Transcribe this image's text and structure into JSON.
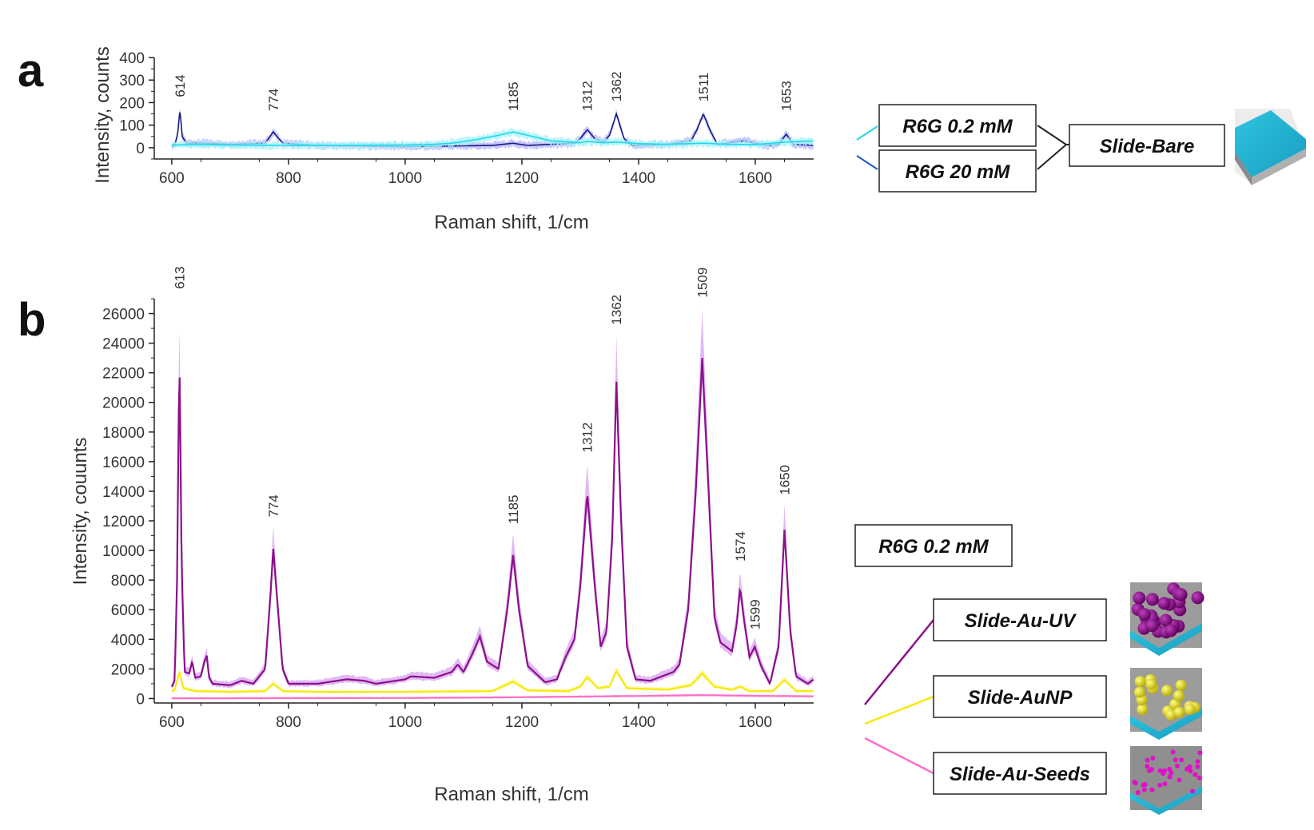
{
  "colors": {
    "dark_blue": "#1a1a7e",
    "cyan": "#20d8e8",
    "purple": "#8b0f8b",
    "yellow": "#f5ea10",
    "pink": "#ff6ec7",
    "band_purple": "#d9a8f0",
    "band_blue": "#b8b8ff"
  },
  "panels": [
    {
      "letter": "a",
      "xlabel": "Raman shift, 1/cm",
      "ylabel": "Intensity, counts",
      "legend_boxes": [
        "R6G 0.2 mM",
        "R6G 20 mM"
      ],
      "substrate_box": "Slide-Bare",
      "substrate_icon": "bare-slide-icon"
    },
    {
      "letter": "b",
      "xlabel": "Raman shift, 1/cm",
      "ylabel": "Intensity, couunts",
      "concentration_box": "R6G 0.2 mM",
      "legend_boxes": [
        "Slide-Au-UV",
        "Slide-AuNP",
        "Slide-Au-Seeds"
      ],
      "substrate_icons": [
        "au-uv-slide-icon",
        "aunp-slide-icon",
        "au-seeds-slide-icon"
      ]
    }
  ],
  "chart_data": [
    {
      "type": "line",
      "xlabel": "Raman shift, 1/cm",
      "ylabel": "Intensity, counts",
      "xlim": [
        570,
        1700
      ],
      "ylim": [
        -50,
        400
      ],
      "xticks": [
        600,
        800,
        1000,
        1200,
        1400,
        1600
      ],
      "yticks": [
        0,
        100,
        200,
        300,
        400
      ],
      "peak_labels": [
        {
          "x": 614,
          "label": "614"
        },
        {
          "x": 774,
          "label": "774"
        },
        {
          "x": 1185,
          "label": "1185"
        },
        {
          "x": 1312,
          "label": "1312"
        },
        {
          "x": 1362,
          "label": "1362"
        },
        {
          "x": 1511,
          "label": "1511"
        },
        {
          "x": 1653,
          "label": "1653"
        }
      ],
      "series": [
        {
          "name": "R6G 0.2 mM",
          "color": "#20d8e8",
          "x": [
            600,
            650,
            700,
            800,
            900,
            1000,
            1050,
            1080,
            1120,
            1160,
            1185,
            1210,
            1250,
            1300,
            1312,
            1340,
            1362,
            1400,
            1450,
            1511,
            1550,
            1600,
            1653,
            1700
          ],
          "y": [
            12,
            14,
            12,
            10,
            10,
            12,
            15,
            20,
            35,
            55,
            70,
            55,
            30,
            22,
            28,
            22,
            25,
            18,
            15,
            20,
            15,
            14,
            25,
            30
          ]
        },
        {
          "name": "R6G 20 mM",
          "color": "#1a1a7e",
          "x": [
            600,
            605,
            610,
            614,
            618,
            625,
            660,
            700,
            760,
            774,
            790,
            850,
            1000,
            1150,
            1185,
            1210,
            1290,
            1300,
            1312,
            1325,
            1340,
            1350,
            1362,
            1375,
            1390,
            1450,
            1490,
            1500,
            1511,
            1522,
            1535,
            1580,
            1620,
            1640,
            1653,
            1665,
            1700
          ],
          "y": [
            5,
            10,
            60,
            170,
            50,
            20,
            20,
            15,
            20,
            70,
            20,
            10,
            5,
            10,
            20,
            10,
            20,
            40,
            80,
            40,
            25,
            55,
            150,
            40,
            10,
            15,
            30,
            80,
            150,
            80,
            15,
            30,
            10,
            15,
            60,
            15,
            10
          ]
        }
      ]
    },
    {
      "type": "line",
      "xlabel": "Raman shift, 1/cm",
      "ylabel": "Intensity, couunts",
      "xlim": [
        570,
        1700
      ],
      "ylim": [
        -300,
        27000
      ],
      "xticks": [
        600,
        800,
        1000,
        1200,
        1400,
        1600
      ],
      "yticks": [
        0,
        2000,
        4000,
        6000,
        8000,
        10000,
        12000,
        14000,
        16000,
        18000,
        20000,
        22000,
        24000,
        26000
      ],
      "peak_labels": [
        {
          "x": 613,
          "label": "613"
        },
        {
          "x": 774,
          "label": "774"
        },
        {
          "x": 1185,
          "label": "1185"
        },
        {
          "x": 1312,
          "label": "1312"
        },
        {
          "x": 1362,
          "label": "1362"
        },
        {
          "x": 1509,
          "label": "1509"
        },
        {
          "x": 1574,
          "label": "1574"
        },
        {
          "x": 1599,
          "label": "1599"
        },
        {
          "x": 1650,
          "label": "1650"
        }
      ],
      "series": [
        {
          "name": "Slide-Au-UV",
          "color": "#8b0f8b",
          "x": [
            600,
            605,
            609,
            613,
            617,
            622,
            630,
            635,
            640,
            650,
            656,
            660,
            664,
            670,
            700,
            720,
            740,
            760,
            770,
            774,
            780,
            790,
            800,
            850,
            900,
            930,
            950,
            1000,
            1010,
            1050,
            1080,
            1090,
            1100,
            1115,
            1128,
            1140,
            1160,
            1175,
            1185,
            1195,
            1210,
            1240,
            1260,
            1275,
            1290,
            1300,
            1312,
            1324,
            1335,
            1345,
            1355,
            1362,
            1370,
            1380,
            1395,
            1420,
            1440,
            1460,
            1470,
            1485,
            1498,
            1509,
            1520,
            1530,
            1540,
            1550,
            1560,
            1568,
            1574,
            1580,
            1590,
            1599,
            1610,
            1625,
            1640,
            1650,
            1660,
            1670,
            1690,
            1700
          ],
          "y": [
            800,
            1200,
            8000,
            23500,
            9000,
            1800,
            1700,
            2500,
            1400,
            1500,
            2500,
            2900,
            1400,
            1000,
            900,
            1200,
            1000,
            2000,
            7500,
            10100,
            7000,
            2000,
            1000,
            1000,
            1300,
            1200,
            1000,
            1300,
            1500,
            1400,
            1800,
            2300,
            1800,
            3000,
            4200,
            2500,
            2000,
            6000,
            9700,
            6000,
            2200,
            1100,
            1300,
            2800,
            4000,
            7500,
            13900,
            8000,
            3500,
            4500,
            11000,
            21400,
            12000,
            3500,
            1300,
            1200,
            1500,
            1800,
            2300,
            6000,
            14000,
            23000,
            14000,
            5500,
            3800,
            3500,
            3200,
            5000,
            7500,
            5500,
            2800,
            3500,
            2200,
            1000,
            3500,
            11400,
            4500,
            1500,
            1000,
            1300
          ]
        },
        {
          "name": "Slide-AuNP",
          "color": "#f5ea10",
          "x": [
            600,
            605,
            613,
            620,
            640,
            700,
            760,
            774,
            790,
            850,
            1000,
            1150,
            1185,
            1210,
            1280,
            1300,
            1312,
            1330,
            1350,
            1362,
            1380,
            1450,
            1490,
            1509,
            1530,
            1560,
            1574,
            1590,
            1630,
            1650,
            1670,
            1700
          ],
          "y": [
            500,
            600,
            1800,
            700,
            500,
            450,
            500,
            1000,
            500,
            450,
            450,
            500,
            1150,
            550,
            500,
            800,
            1450,
            700,
            800,
            1850,
            700,
            600,
            900,
            1700,
            800,
            600,
            800,
            500,
            500,
            1250,
            500,
            500
          ]
        },
        {
          "name": "Slide-Au-Seeds",
          "color": "#ff6ec7",
          "x": [
            600,
            700,
            800,
            900,
            1000,
            1100,
            1200,
            1300,
            1362,
            1400,
            1509,
            1600,
            1700
          ],
          "y": [
            20,
            20,
            30,
            30,
            40,
            60,
            90,
            130,
            160,
            170,
            230,
            180,
            150
          ]
        }
      ]
    }
  ]
}
